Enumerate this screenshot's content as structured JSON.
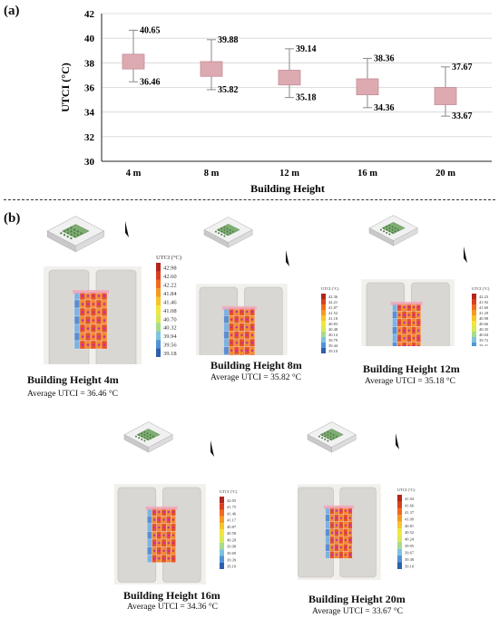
{
  "panel_a_label": "(a)",
  "panel_b_label": "(b)",
  "chart_data": {
    "type": "box",
    "xlabel": "Building  Height",
    "ylabel": "UTCI (°C)",
    "ylim": [
      30,
      42
    ],
    "yticks": [
      "30",
      "32",
      "34",
      "36",
      "38",
      "40",
      "42"
    ],
    "categories": [
      "4 m",
      "8 m",
      "12 m",
      "16 m",
      "20 m"
    ],
    "whisker_max": [
      40.65,
      39.88,
      39.14,
      38.36,
      37.67
    ],
    "whisker_min": [
      36.46,
      35.82,
      35.18,
      34.36,
      33.67
    ],
    "q3": [
      38.7,
      38.1,
      37.4,
      36.7,
      36.0
    ],
    "q1": [
      37.5,
      36.9,
      36.2,
      35.4,
      34.6
    ],
    "max_labels": [
      "40.65",
      "39.88",
      "39.14",
      "38.36",
      "37.67"
    ],
    "min_labels": [
      "36.46",
      "35.82",
      "35.18",
      "34.36",
      "33.67"
    ],
    "grid": true,
    "box_color": "#deaab2",
    "box_edge_color": "#c48d97"
  },
  "maps": [
    {
      "title": "Building Height 4m",
      "avg": "Average UTCI = 36.46 °C",
      "legend_title": "UTCI (°C)",
      "legend_values": [
        "42.98",
        "42.60",
        "42.22",
        "41.84",
        "41.46",
        "41.08",
        "40.70",
        "40.32",
        "39.94",
        "39.56",
        "39.18"
      ]
    },
    {
      "title": "Building Height 8m",
      "avg": "Average UTCI = 35.82 °C",
      "legend_title": "UTCI (°C)",
      "legend_values": [
        "42.36",
        "42.21",
        "41.87",
        "41.52",
        "41.18",
        "40.83",
        "40.48",
        "40.14",
        "39.79",
        "39.44",
        "39.10"
      ]
    },
    {
      "title": "Building Height 12m",
      "avg": "Average UTCI = 35.18 °C",
      "legend_title": "UTCI (°C)",
      "legend_values": [
        "42.23",
        "41.92",
        "41.60",
        "41.29",
        "40.98",
        "40.66",
        "40.35",
        "40.04",
        "39.72",
        "39.41",
        "39.10"
      ]
    },
    {
      "title": "Building Height 16m",
      "avg": "Average UTCI = 34.36 °C",
      "legend_title": "UTCI (°C)",
      "legend_values": [
        "42.05",
        "41.75",
        "41.46",
        "41.17",
        "40.87",
        "40.58",
        "40.28",
        "39.98",
        "39.69",
        "39.39",
        "39.10"
      ]
    },
    {
      "title": "Building Height 20m",
      "avg": "Average UTCI = 33.67 °C",
      "legend_title": "UTCI (°C)",
      "legend_values": [
        "41.94",
        "41.66",
        "41.37",
        "41.09",
        "40.81",
        "40.52",
        "40.24",
        "39.95",
        "39.67",
        "39.38",
        "39.10"
      ]
    }
  ],
  "colors": {
    "building": "#d9d7d3",
    "building_edge": "#bdbab5",
    "ground": "#f2f0ec"
  }
}
